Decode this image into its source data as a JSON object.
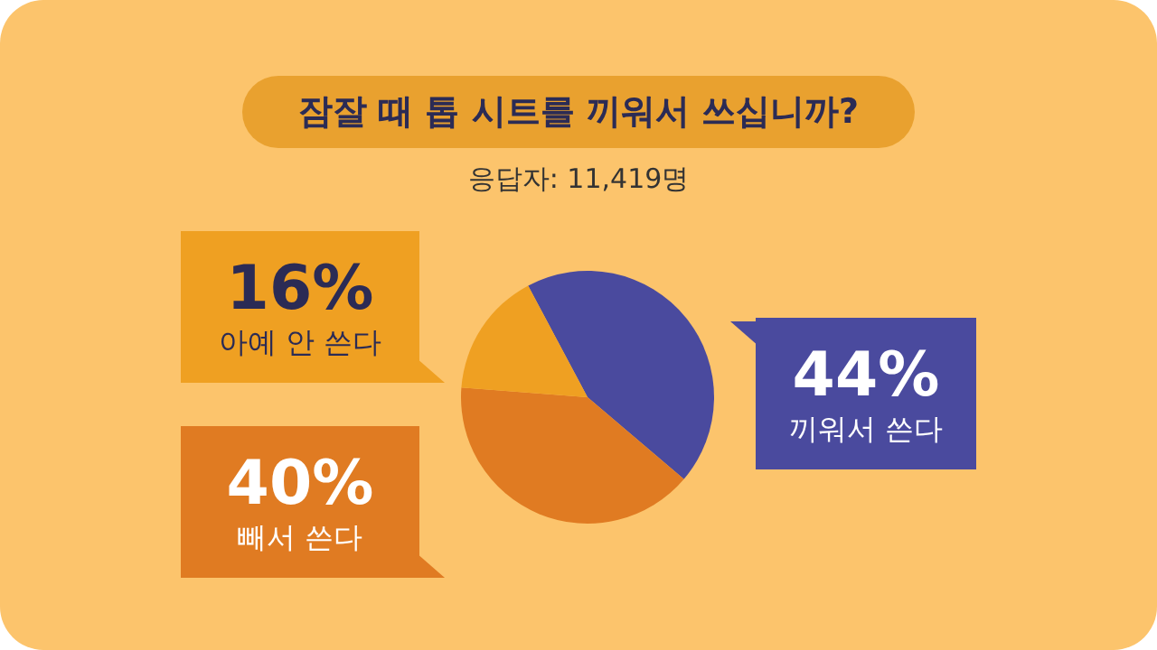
{
  "chart_data": {
    "type": "pie",
    "title": "잠잘 때 톱 시트를 끼워서 쓰십니까?",
    "subtitle": "응답자: 11,419명",
    "categories": [
      "끼워서 쓴다",
      "빼서 쓴다",
      "아예 안 쓴다"
    ],
    "values": [
      44,
      40,
      16
    ],
    "colors": [
      "#4a4a9e",
      "#e07b22",
      "#efa022"
    ],
    "value_labels": [
      "44%",
      "40%",
      "16%"
    ]
  }
}
